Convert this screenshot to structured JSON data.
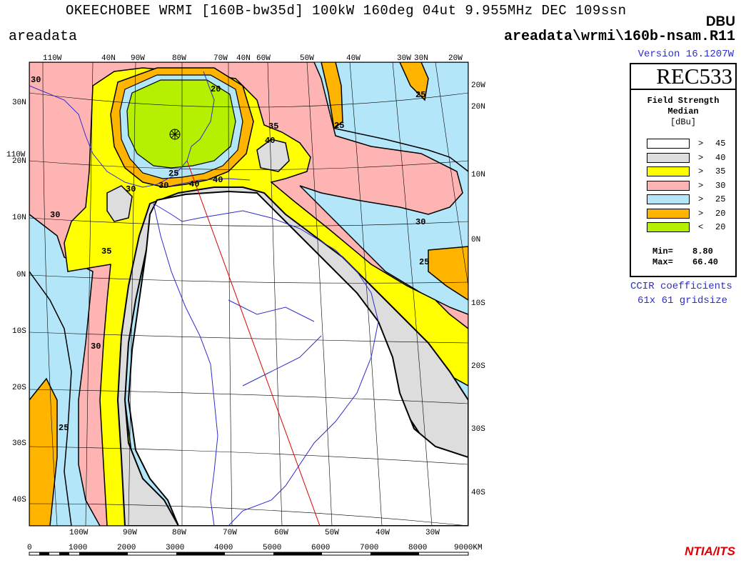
{
  "header": {
    "title": "OKEECHOBEE WRMI [160B-bw35d] 100kW 160deg 04ut 9.955MHz DEC 109ssn",
    "left_label": "areadata",
    "units_tag": "DBU",
    "file_path": "areadata\\wrmi\\160b-nsam.R11",
    "version": "Version 16.1207W"
  },
  "legend": {
    "title": "REC533",
    "heading1": "Field Strength",
    "heading2": "Median",
    "heading3": "[dBu]",
    "rows": [
      {
        "op": ">",
        "value": "45",
        "color": "#ffffff"
      },
      {
        "op": ">",
        "value": "40",
        "color": "#dddddd"
      },
      {
        "op": ">",
        "value": "35",
        "color": "#ffff00"
      },
      {
        "op": ">",
        "value": "30",
        "color": "#ffb4b4"
      },
      {
        "op": ">",
        "value": "25",
        "color": "#b4e6fa"
      },
      {
        "op": ">",
        "value": "20",
        "color": "#ffb400"
      },
      {
        "op": "<",
        "value": "20",
        "color": "#b4f000"
      }
    ],
    "min_label": "Min=",
    "min_value": "8.80",
    "max_label": "Max=",
    "max_value": "66.40"
  },
  "footer": {
    "ccir_line1": "CCIR coefficients",
    "ccir_line2": "61x 61 gridsize",
    "credit": "NTIA/ITS"
  },
  "map": {
    "top_lon_labels": [
      "110W",
      "40N",
      "90W",
      "80W",
      "70W",
      "40N",
      "60W",
      "50W",
      "40W",
      "30W",
      "30N",
      "20W"
    ],
    "bottom_lon_labels": [
      "100W",
      "90W",
      "80W",
      "70W",
      "60W",
      "50W",
      "40W",
      "30W"
    ],
    "left_lat_labels": [
      "30N",
      "110W",
      "20N",
      "10N",
      "0N",
      "10S",
      "20S",
      "30S",
      "40S"
    ],
    "right_lat_labels": [
      "20W",
      "20N",
      "10N",
      "0N",
      "10S",
      "20S",
      "30S",
      "40S"
    ],
    "km_scale": [
      "0",
      "1000",
      "2000",
      "3000",
      "4000",
      "5000",
      "6000",
      "7000",
      "8000",
      "9000KM"
    ],
    "contour_labels": [
      "30",
      "20",
      "35",
      "40",
      "25",
      "25",
      "25",
      "30",
      "40",
      "30",
      "30",
      "30",
      "35",
      "30",
      "25",
      "25",
      "40"
    ]
  }
}
